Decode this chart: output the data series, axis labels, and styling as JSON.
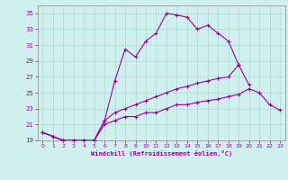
{
  "xlabel": "Windchill (Refroidissement éolien,°C)",
  "background_color": "#cff0ee",
  "grid_color": "#aaddcc",
  "line_color": "#990099",
  "spine_color": "#888888",
  "xlim": [
    -0.5,
    23.5
  ],
  "ylim": [
    19,
    36
  ],
  "xticks": [
    0,
    1,
    2,
    3,
    4,
    5,
    6,
    7,
    8,
    9,
    10,
    11,
    12,
    13,
    14,
    15,
    16,
    17,
    18,
    19,
    20,
    21,
    22,
    23
  ],
  "yticks": [
    19,
    21,
    23,
    25,
    27,
    29,
    31,
    33,
    35
  ],
  "series": [
    {
      "x": [
        0,
        1,
        2,
        3,
        4,
        5,
        6,
        7,
        8,
        9,
        10,
        11,
        12,
        13,
        14,
        15,
        16,
        17,
        18,
        19
      ],
      "y": [
        20.0,
        19.5,
        19.0,
        19.0,
        19.0,
        19.0,
        21.5,
        26.5,
        30.5,
        29.5,
        31.5,
        32.5,
        35.0,
        34.8,
        34.5,
        33.0,
        33.5,
        32.5,
        31.5,
        28.5
      ]
    },
    {
      "x": [
        0,
        1,
        2,
        3,
        4,
        5,
        6,
        7,
        8,
        9,
        10,
        11,
        12,
        13,
        14,
        15,
        16,
        17,
        18,
        19,
        20
      ],
      "y": [
        20.0,
        19.5,
        19.0,
        19.0,
        19.0,
        19.0,
        21.5,
        22.5,
        23.0,
        23.5,
        24.0,
        24.5,
        25.0,
        25.5,
        25.8,
        26.2,
        26.5,
        26.8,
        27.0,
        28.5,
        26.0
      ]
    },
    {
      "x": [
        0,
        1,
        2,
        3,
        4,
        5,
        6,
        7,
        8,
        9,
        10,
        11,
        12,
        13,
        14,
        15,
        16,
        17,
        18,
        19,
        20,
        21,
        22,
        23
      ],
      "y": [
        20.0,
        19.5,
        19.0,
        19.0,
        19.0,
        19.0,
        21.0,
        21.5,
        22.0,
        22.0,
        22.5,
        22.5,
        23.0,
        23.5,
        23.5,
        23.8,
        24.0,
        24.2,
        24.5,
        24.8,
        25.5,
        25.0,
        23.5,
        22.8
      ]
    }
  ]
}
